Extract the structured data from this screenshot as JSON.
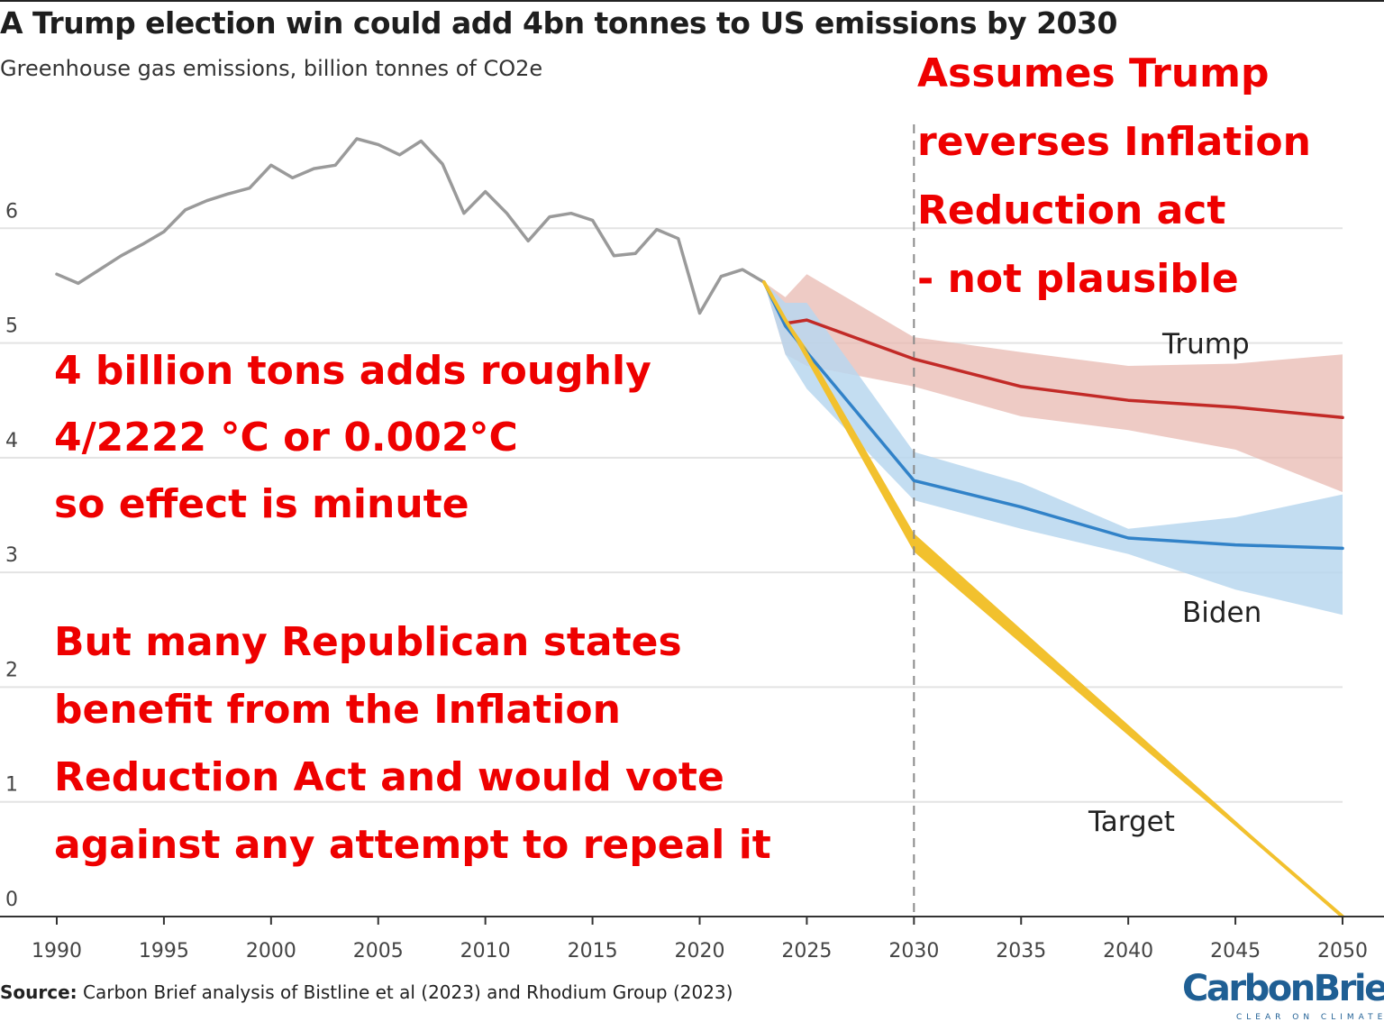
{
  "title": "A Trump election win could add 4bn tonnes to US emissions by 2030",
  "subtitle": "Greenhouse gas emissions, billion tonnes of CO2e",
  "source_label": "Source:",
  "source_text": "Carbon Brief analysis of Bistline et al (2023) and Rhodium Group (2023)",
  "logo": {
    "text": "CarbonBrief",
    "tagline": "CLEAR ON CLIMATE"
  },
  "colors": {
    "historical": "#9a9a9a",
    "trump": "#c22a27",
    "trump_band": "#e8b9b2",
    "biden": "#3182c8",
    "biden_band": "#b9d7ee",
    "target": "#f2c12e",
    "annotation": "#ee0000"
  },
  "annotations": {
    "top_right": [
      "Assumes Trump",
      "reverses Inflation",
      "Reduction act",
      "- not plausible"
    ],
    "middle_left": [
      "4 billion tons adds roughly",
      "4/2222 °C or 0.002°C",
      "so effect is minute"
    ],
    "bottom_left": [
      "But many Republican states",
      "benefit from the Inflation",
      "Reduction Act and would vote",
      "against any attempt to repeal it"
    ]
  },
  "chart_data": {
    "type": "line",
    "xlim": [
      1990,
      2050
    ],
    "ylim": [
      0,
      7
    ],
    "x_ticks": [
      1990,
      1995,
      2000,
      2005,
      2010,
      2015,
      2020,
      2025,
      2030,
      2035,
      2040,
      2045,
      2050
    ],
    "y_ticks": [
      0,
      1,
      2,
      3,
      4,
      5,
      6
    ],
    "grid": true,
    "reference_line_x": 2030,
    "series": [
      {
        "key": "historical",
        "x": [
          1990,
          1991,
          1992,
          1993,
          1994,
          1995,
          1996,
          1997,
          1998,
          1999,
          2000,
          2001,
          2002,
          2003,
          2004,
          2005,
          2006,
          2007,
          2008,
          2009,
          2010,
          2011,
          2012,
          2013,
          2014,
          2015,
          2016,
          2017,
          2018,
          2019,
          2020,
          2021,
          2022,
          2023
        ],
        "y": [
          5.6,
          5.52,
          5.64,
          5.76,
          5.86,
          5.97,
          6.16,
          6.24,
          6.3,
          6.35,
          6.55,
          6.44,
          6.52,
          6.55,
          6.78,
          6.73,
          6.64,
          6.76,
          6.56,
          6.13,
          6.32,
          6.13,
          5.89,
          6.1,
          6.13,
          6.07,
          5.76,
          5.78,
          5.99,
          5.91,
          5.26,
          5.58,
          5.64,
          5.53
        ]
      },
      {
        "key": "trump",
        "name": "Trump",
        "x": [
          2023,
          2024,
          2025,
          2030,
          2035,
          2040,
          2045,
          2050
        ],
        "y": [
          5.53,
          5.17,
          5.2,
          4.86,
          4.62,
          4.5,
          4.44,
          4.35
        ],
        "band_upper": [
          5.53,
          5.4,
          5.6,
          5.05,
          4.92,
          4.8,
          4.82,
          4.9
        ],
        "band_lower": [
          5.53,
          4.9,
          4.8,
          4.62,
          4.36,
          4.24,
          4.07,
          3.7
        ]
      },
      {
        "key": "biden",
        "name": "Biden",
        "x": [
          2023,
          2024,
          2025,
          2030,
          2035,
          2040,
          2045,
          2050
        ],
        "y": [
          5.53,
          5.15,
          4.92,
          3.8,
          3.57,
          3.3,
          3.24,
          3.21
        ],
        "band_upper": [
          5.53,
          5.35,
          5.35,
          4.05,
          3.78,
          3.38,
          3.48,
          3.68
        ],
        "band_lower": [
          5.53,
          4.9,
          4.6,
          3.63,
          3.38,
          3.16,
          2.85,
          2.63
        ]
      },
      {
        "key": "target",
        "name": "Target",
        "x": [
          2023,
          2024,
          2025,
          2030,
          2040,
          2050
        ],
        "y": [
          5.53,
          5.2,
          4.9,
          3.25,
          1.62,
          0
        ],
        "band_upper": [
          5.53,
          5.22,
          4.95,
          3.34,
          1.67,
          0
        ],
        "band_lower": [
          5.53,
          5.18,
          4.85,
          3.18,
          1.58,
          0
        ]
      }
    ]
  }
}
